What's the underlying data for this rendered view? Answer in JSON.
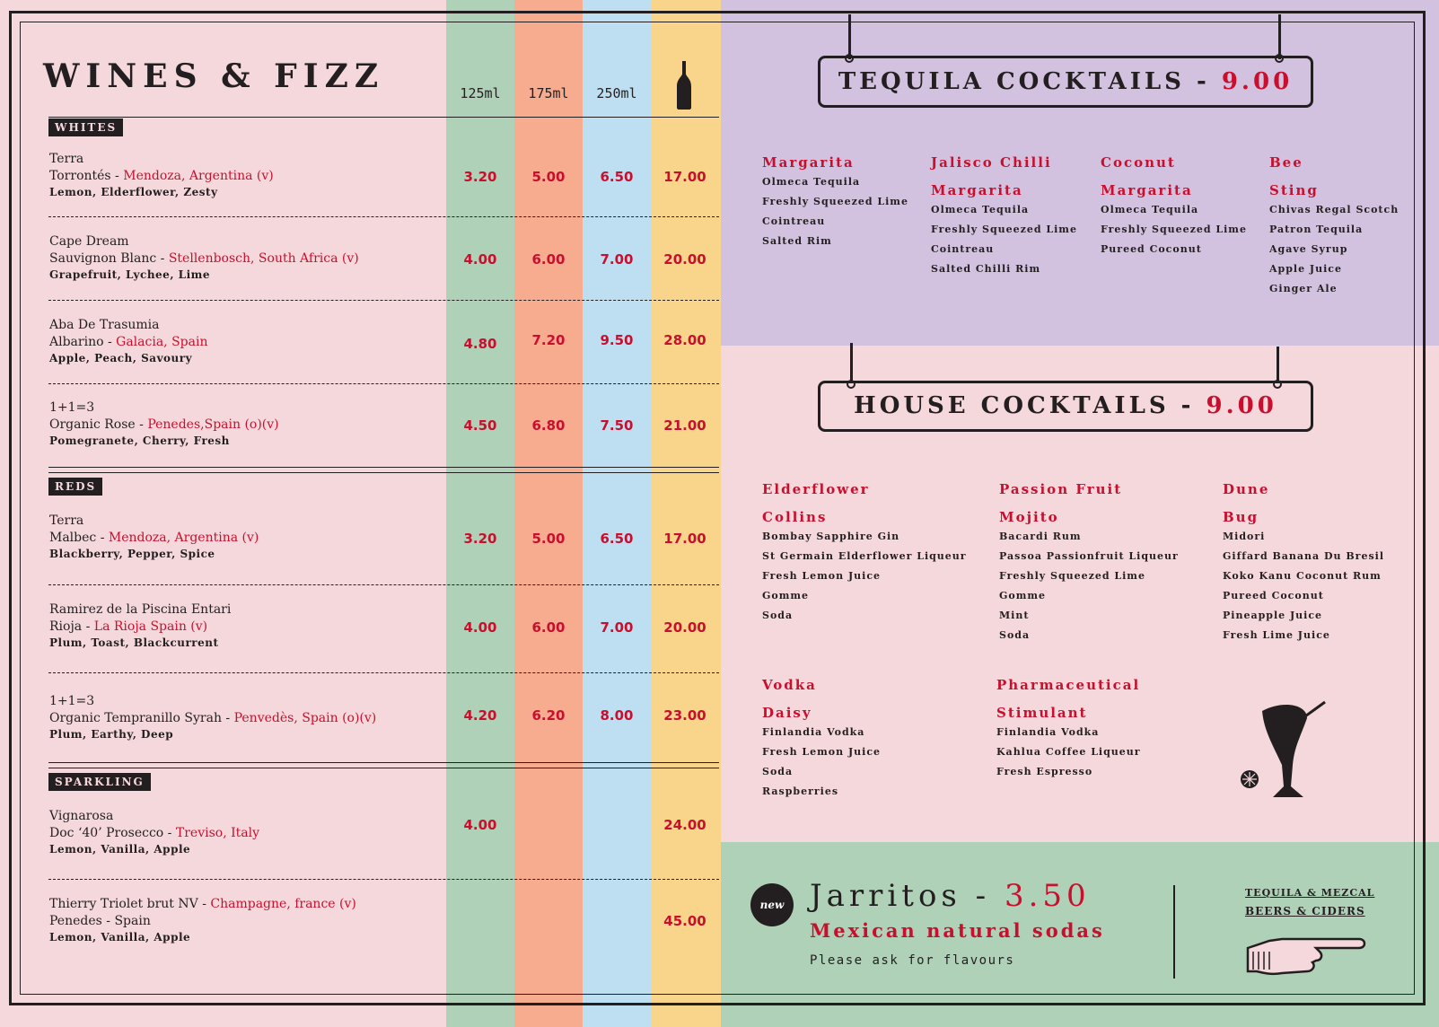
{
  "colors": {
    "page_bg": "#f5d8dc",
    "col_125": "#afd1b8",
    "col_175": "#f7ab8f",
    "col_250": "#bedff2",
    "col_bottle": "#f8d58a",
    "accent_red": "#c8102e",
    "tequila_bg": "#d3c2df",
    "soda_bg": "#afd1b8"
  },
  "wines": {
    "title": "WINES & FIZZ",
    "sizes": [
      "125ml",
      "175ml",
      "250ml"
    ],
    "bottle_icon": "wine-bottle-icon",
    "sections": [
      {
        "tag": "WHITES",
        "items": [
          {
            "producer": "Terra",
            "grape": "Torrontés",
            "region": "Mendoza, Argentina (v)",
            "notes": "Lemon, Elderflower, Zesty",
            "prices": [
              "3.20",
              "5.00",
              "6.50",
              "17.00"
            ]
          },
          {
            "producer": "Cape Dream",
            "grape": "Sauvignon Blanc",
            "region": "Stellenbosch, South Africa (v)",
            "notes": "Grapefruit, Lychee, Lime",
            "prices": [
              "4.00",
              "6.00",
              "7.00",
              "20.00"
            ]
          },
          {
            "producer": "Aba De Trasumia",
            "grape": "Albarino",
            "region": "Galacia, Spain",
            "notes": "Apple, Peach, Savoury",
            "prices": [
              "4.80",
              "7.20",
              "9.50",
              "28.00"
            ]
          },
          {
            "producer": "1+1=3",
            "grape": "Organic Rose",
            "region": "Penedes,Spain (o)(v)",
            "notes": "Pomegranete, Cherry, Fresh",
            "prices": [
              "4.50",
              "6.80",
              "7.50",
              "21.00"
            ]
          }
        ]
      },
      {
        "tag": "REDS",
        "items": [
          {
            "producer": "Terra",
            "grape": "Malbec",
            "region": "Mendoza, Argentina (v)",
            "notes": "Blackberry, Pepper, Spice",
            "prices": [
              "3.20",
              "5.00",
              "6.50",
              "17.00"
            ]
          },
          {
            "producer": "Ramirez de la Piscina Entari",
            "grape": "Rioja",
            "region": "La Rioja Spain (v)",
            "notes": "Plum, Toast, Blackcurrent",
            "prices": [
              "4.00",
              "6.00",
              "7.00",
              "20.00"
            ]
          },
          {
            "producer": "1+1=3",
            "grape": "Organic Tempranillo Syrah",
            "region": "Penvedès, Spain (o)(v)",
            "notes": "Plum, Earthy, Deep",
            "prices": [
              "4.20",
              "6.20",
              "8.00",
              "23.00"
            ]
          }
        ]
      },
      {
        "tag": "SPARKLING",
        "items": [
          {
            "producer": "Vignarosa",
            "grape": "Doc ‘40’ Prosecco",
            "region": "Treviso, Italy",
            "notes": "Lemon, Vanilla, Apple",
            "prices": [
              "4.00",
              "",
              "",
              "24.00"
            ]
          },
          {
            "line1_grape": "Thierry Triolet brut NV",
            "line1_region": "Champagne, france (v)",
            "line2": "Penedes -  Spain",
            "notes": "Lemon, Vanilla, Apple",
            "prices": [
              "",
              "",
              "",
              "45.00"
            ]
          }
        ]
      }
    ]
  },
  "tequila": {
    "title": "TEQUILA COCKTAILS -",
    "price": "9.00",
    "cocktails": [
      {
        "name1": "Margarita",
        "name2": "",
        "ingredients": [
          "Olmeca Tequila",
          "Freshly Squeezed Lime",
          "Cointreau",
          "Salted Rim"
        ]
      },
      {
        "name1": "Jalisco Chilli",
        "name2": "Margarita",
        "ingredients": [
          "Olmeca Tequila",
          "Freshly Squeezed Lime",
          "Cointreau",
          "Salted Chilli Rim"
        ]
      },
      {
        "name1": "Coconut",
        "name2": "Margarita",
        "ingredients": [
          "Olmeca Tequila",
          "Freshly Squeezed Lime",
          "Pureed Coconut"
        ]
      },
      {
        "name1": "Bee",
        "name2": "Sting",
        "ingredients": [
          "Chivas Regal Scotch",
          "Patron Tequila",
          "Agave Syrup",
          "Apple Juice",
          "Ginger Ale"
        ]
      }
    ]
  },
  "house": {
    "title": "HOUSE COCKTAILS -",
    "price": "9.00",
    "cocktails": [
      {
        "name1": "Elderflower",
        "name2": "Collins",
        "ingredients": [
          "Bombay Sapphire Gin",
          "St Germain Elderflower Liqueur",
          "Fresh Lemon Juice",
          "Gomme",
          "Soda"
        ]
      },
      {
        "name1": "Passion Fruit",
        "name2": "Mojito",
        "ingredients": [
          "Bacardi Rum",
          "Passoa Passionfruit Liqueur",
          "Freshly Squeezed Lime",
          "Gomme",
          "Mint",
          "Soda"
        ]
      },
      {
        "name1": "Dune",
        "name2": "Bug",
        "ingredients": [
          "Midori",
          "Giffard Banana Du Bresil",
          "Koko Kanu Coconut Rum",
          "Pureed Coconut",
          "Pineapple Juice",
          "Fresh Lime Juice"
        ]
      },
      {
        "name1": "Vodka",
        "name2": "Daisy",
        "ingredients": [
          "Finlandia Vodka",
          "Fresh Lemon Juice",
          "Soda",
          "Raspberries"
        ]
      },
      {
        "name1": "Pharmaceutical",
        "name2": "Stimulant",
        "ingredients": [
          "Finlandia Vodka",
          "Kahlua Coffee Liqueur",
          "Fresh Espresso"
        ]
      }
    ]
  },
  "jarritos": {
    "badge": "new",
    "title": "Jarritos -",
    "price": "3.50",
    "subtitle": "Mexican natural sodas",
    "note": "Please ask for flavours",
    "link1": "TEQUILA & MEZCAL",
    "link2": "BEERS & CIDERS"
  }
}
